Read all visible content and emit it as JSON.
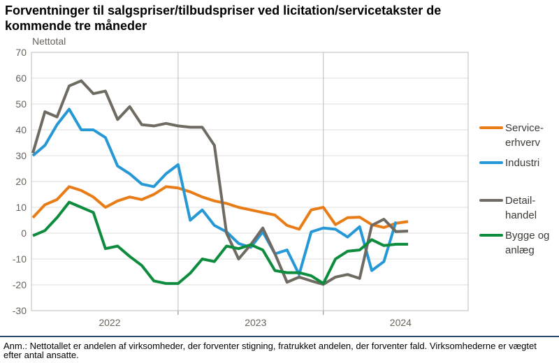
{
  "header": {
    "title_line1": "Forventninger til salgspriser/tilbudspriser ved licitation/servicetakster de",
    "title_line2": "kommende tre måneder"
  },
  "chart_data": {
    "type": "line",
    "title": "Forventninger til salgspriser/tilbudspriser ved licitation/servicetakster de kommende tre måneder",
    "ylabel": "Nettotal",
    "xlabel": "",
    "ylim": [
      -30,
      70
    ],
    "ytick_step": 10,
    "ytick_labels": [
      "70",
      "60",
      "50",
      "40",
      "30",
      "20",
      "10",
      "0",
      "-10",
      "-20",
      "-30"
    ],
    "grid": "horizontal gridlines + vertical year-boundary lines",
    "legend_position": "right",
    "x_months": [
      "2022-01",
      "2022-02",
      "2022-03",
      "2022-04",
      "2022-05",
      "2022-06",
      "2022-07",
      "2022-08",
      "2022-09",
      "2022-10",
      "2022-11",
      "2022-12",
      "2023-01",
      "2023-02",
      "2023-03",
      "2023-04",
      "2023-05",
      "2023-06",
      "2023-07",
      "2023-08",
      "2023-09",
      "2023-10",
      "2023-11",
      "2023-12",
      "2024-01",
      "2024-02",
      "2024-03",
      "2024-04",
      "2024-05",
      "2024-06",
      "2024-07",
      "2024-08"
    ],
    "year_ticks": [
      {
        "label": "2022",
        "start_index": 0
      },
      {
        "label": "2023",
        "start_index": 12
      },
      {
        "label": "2024",
        "start_index": 24
      }
    ],
    "series": [
      {
        "name": "Service-erhverv",
        "label_lines": [
          "Service-",
          "erhverv"
        ],
        "color": "#E87D17",
        "values": [
          6,
          11,
          13,
          18,
          16.5,
          14,
          10,
          12.5,
          14,
          13,
          15,
          18,
          17.5,
          16,
          14,
          12.5,
          11.5,
          10,
          9,
          8,
          7,
          3,
          1.5,
          9,
          10,
          3.3,
          6,
          6.2,
          3.3,
          2.2,
          3.8,
          4.5
        ]
      },
      {
        "name": "Industri",
        "label_lines": [
          "Industri"
        ],
        "color": "#2798D6",
        "values": [
          30,
          34,
          42,
          48,
          40,
          40,
          37,
          26,
          23,
          19,
          18,
          23,
          26.5,
          5,
          9,
          3,
          0.5,
          -4,
          -5.5,
          0.5,
          -8,
          -6.5,
          -16,
          0.5,
          2,
          1.5,
          -1.5,
          2.5,
          -14.5,
          -11,
          4.5,
          null
        ]
      },
      {
        "name": "Detail-handel",
        "label_lines": [
          "Detail-",
          "handel"
        ],
        "color": "#6F6A62",
        "values": [
          31,
          47,
          45,
          57,
          59,
          54,
          55,
          44,
          49,
          42,
          41.5,
          42.5,
          41.5,
          41,
          41,
          34,
          0,
          -10,
          -4.5,
          2,
          -8,
          -19,
          -17,
          -18.5,
          -19.8,
          -17,
          -16,
          -17.5,
          3,
          5.4,
          0.6,
          0.8
        ]
      },
      {
        "name": "Bygge og anlæg",
        "label_lines": [
          "Bygge og",
          "anlæg"
        ],
        "color": "#0E8C3E",
        "values": [
          -1,
          1,
          6,
          12,
          10,
          8,
          -6,
          -5,
          -9,
          -12.5,
          -18.5,
          -19.5,
          -19.5,
          -15.5,
          -10,
          -11,
          -5,
          -6,
          -4.5,
          -6.5,
          -14.5,
          -15.3,
          -15.3,
          -16.5,
          -19.5,
          -10,
          -7,
          -6.5,
          -2.5,
          -4.8,
          -4.3,
          -4.3
        ]
      }
    ]
  },
  "footer": {
    "divider_color": "#2C4A6E",
    "line1": "Anm.: Nettotallet er andelen af virksomheder, der forventer stigning, fratrukket andelen, der forventer fald. Virksomhederne er vægtet",
    "line2": "efter antal ansatte."
  }
}
